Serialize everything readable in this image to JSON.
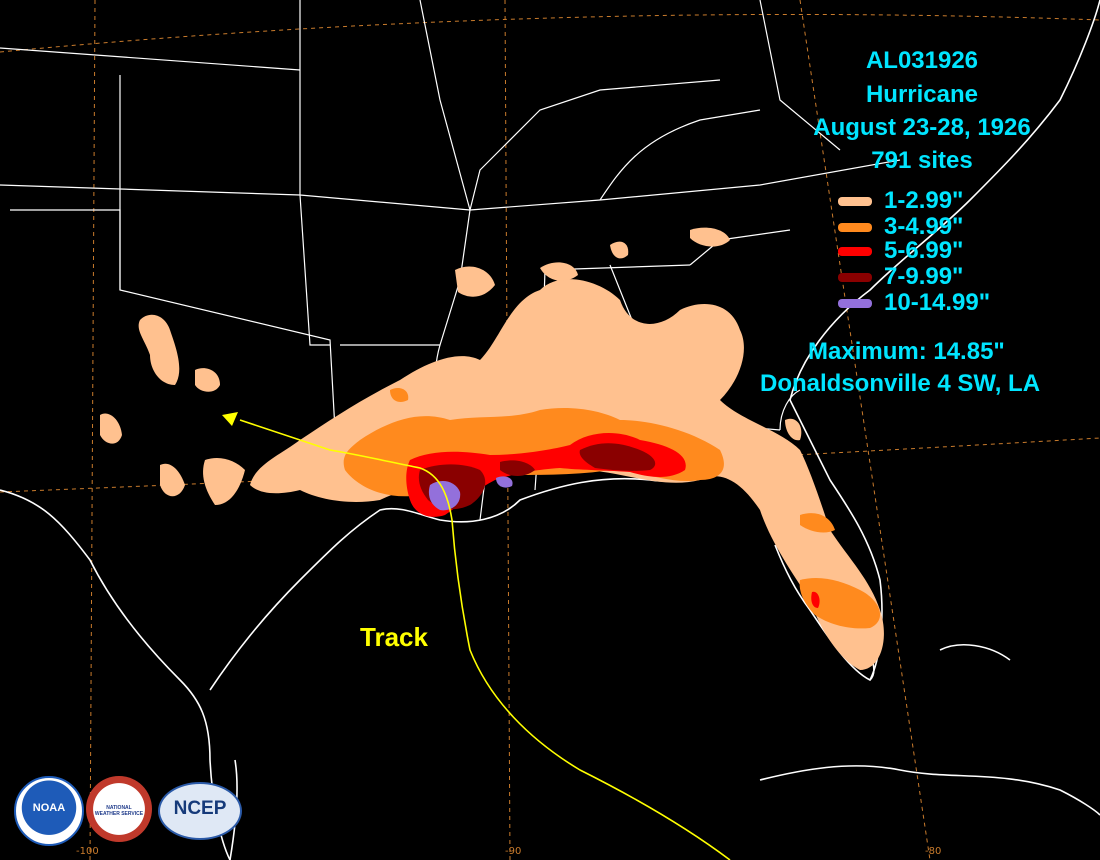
{
  "title": {
    "storm_id": "AL031926",
    "type": "Hurricane",
    "dates": "August 23-28, 1926",
    "sites": "791 sites"
  },
  "legend": [
    {
      "label": "1-2.99\"",
      "color": "#ffc18f"
    },
    {
      "label": "3-4.99\"",
      "color": "#ff8a1e"
    },
    {
      "label": "5-6.99\"",
      "color": "#ff0000"
    },
    {
      "label": "7-9.99\"",
      "color": "#8a0000"
    },
    {
      "label": "10-14.99\"",
      "color": "#9370db"
    }
  ],
  "maximum": {
    "value": "Maximum: 14.85\"",
    "location": "Donaldsonville 4 SW, LA"
  },
  "track_label": "Track",
  "track_color": "#ffff00",
  "longitude_ticks": [
    "-100",
    "-90",
    "-80"
  ],
  "logos": [
    {
      "name": "noaa-logo",
      "text": "NOAA"
    },
    {
      "name": "nws-logo",
      "text": "NATIONAL WEATHER SERVICE"
    },
    {
      "name": "ncep-logo",
      "text": "NCEP"
    }
  ],
  "colors": {
    "background": "#000000",
    "borders": "#ffffff",
    "graticule": "#c97b2c",
    "label": "#00e5ff"
  }
}
